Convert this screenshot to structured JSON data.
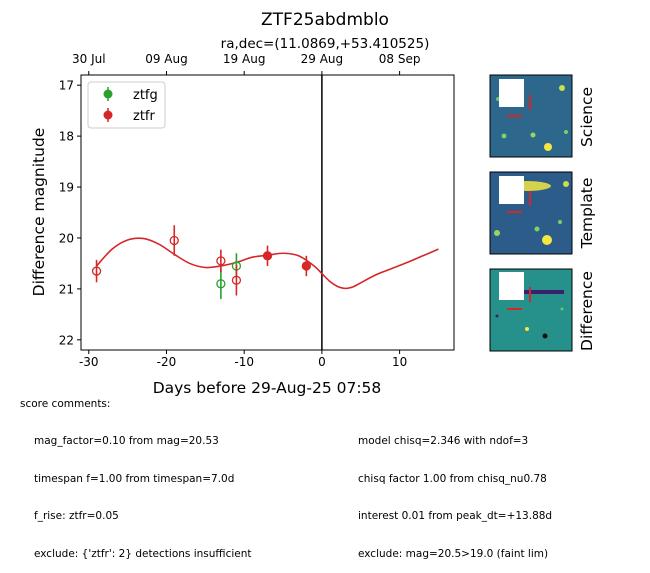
{
  "chart_data": {
    "type": "scatter",
    "title": "ZTF25abdmblo",
    "subtitle": "ra,dec=(11.0869,+53.410525)",
    "xlabel": "Days before 29-Aug-25 07:58",
    "ylabel": "Difference magnitude",
    "xlim": [
      -31,
      17
    ],
    "ylim": [
      22.2,
      16.8
    ],
    "y_inverted": true,
    "xticks": [
      -30,
      -20,
      -10,
      0,
      10
    ],
    "yticks": [
      17,
      18,
      19,
      20,
      21,
      22
    ],
    "top_axis_ticks": [
      {
        "x": -30,
        "label": "30 Jul"
      },
      {
        "x": -20,
        "label": "09 Aug"
      },
      {
        "x": -10,
        "label": "19 Aug"
      },
      {
        "x": 0,
        "label": "29 Aug"
      },
      {
        "x": 10,
        "label": "08 Sep"
      }
    ],
    "reference_line_x": 0,
    "legend_position": "top-left",
    "grid": false,
    "series": [
      {
        "name": "ztfg",
        "color": "#2ca02c",
        "points": [
          {
            "x": -13.0,
            "y": 20.9,
            "err": 0.3,
            "filled": false
          },
          {
            "x": -11.0,
            "y": 20.55,
            "err": 0.25,
            "filled": false
          }
        ]
      },
      {
        "name": "ztfr",
        "color": "#d62728",
        "points": [
          {
            "x": -29.0,
            "y": 20.65,
            "err": 0.22,
            "filled": false
          },
          {
            "x": -19.0,
            "y": 20.05,
            "err": 0.3,
            "filled": false
          },
          {
            "x": -13.0,
            "y": 20.45,
            "err": 0.22,
            "filled": false
          },
          {
            "x": -11.0,
            "y": 20.83,
            "err": 0.3,
            "filled": false
          },
          {
            "x": -7.0,
            "y": 20.35,
            "err": 0.2,
            "filled": true
          },
          {
            "x": -2.0,
            "y": 20.55,
            "err": 0.2,
            "filled": true
          }
        ]
      }
    ],
    "model_curve": {
      "color": "#d62728",
      "x": [
        -29,
        -27,
        -25,
        -23,
        -21,
        -19,
        -17,
        -15,
        -13,
        -11,
        -9,
        -7,
        -5,
        -3,
        -1,
        0,
        1,
        2,
        3,
        4,
        5,
        7,
        9,
        11,
        13,
        15
      ],
      "y": [
        20.55,
        20.22,
        20.04,
        20.01,
        20.12,
        20.32,
        20.5,
        20.58,
        20.55,
        20.48,
        20.38,
        20.34,
        20.3,
        20.35,
        20.55,
        20.7,
        20.85,
        20.95,
        20.99,
        20.96,
        20.88,
        20.72,
        20.6,
        20.48,
        20.35,
        20.22
      ]
    }
  },
  "cutouts": [
    {
      "label": "Science"
    },
    {
      "label": "Template"
    },
    {
      "label": "Difference"
    }
  ],
  "score_comments": {
    "header": "score comments:",
    "left": [
      "mag_factor=0.10 from mag=20.53",
      "timespan f=1.00 from timespan=7.0d",
      "f_rise: ztfr=0.05",
      "exclude: {'ztfr': 2} detections insufficient"
    ],
    "right": [
      "model chisq=2.346 with ndof=3",
      "chisq factor 1.00 from chisq_nu0.78",
      "interest 0.01 from peak_dt=+13.88d",
      "exclude: mag=20.5>19.0 (faint lim)"
    ]
  }
}
